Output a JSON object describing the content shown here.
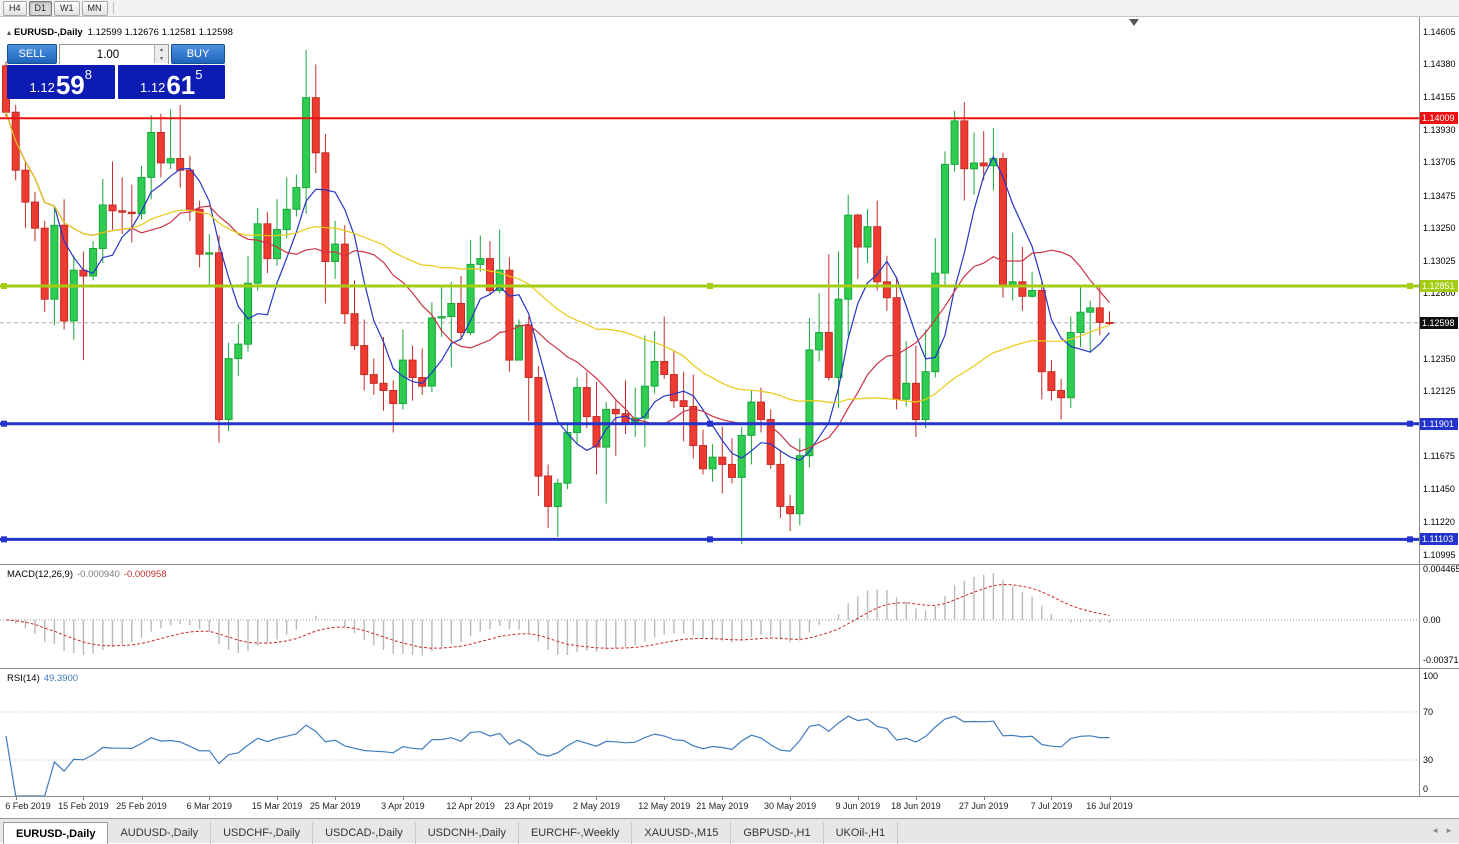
{
  "toolbar": {
    "timeframes": [
      {
        "label": "H4",
        "active": false
      },
      {
        "label": "D1",
        "active": true
      },
      {
        "label": "W1",
        "active": false
      },
      {
        "label": "MN",
        "active": false
      }
    ]
  },
  "chart_header": {
    "collapse_icon": "▴",
    "symbol_title": "EURUSD-,Daily",
    "ohlc": "1.12599 1.12676 1.12581 1.12598"
  },
  "one_click": {
    "sell_label": "SELL",
    "buy_label": "BUY",
    "volume": "1.00",
    "spinner_up_icon": "▲",
    "spinner_down_icon": "▼",
    "sell_price": {
      "prefix": "1.12",
      "big": "59",
      "sup": "8"
    },
    "buy_price": {
      "prefix": "1.12",
      "big": "61",
      "sup": "5"
    }
  },
  "price_axis_ticks": [
    "1.14605",
    "1.14380",
    "1.14155",
    "1.13930",
    "1.13705",
    "1.13475",
    "1.13250",
    "1.13025",
    "1.12800",
    "1.12575",
    "1.12350",
    "1.12125",
    "1.11900",
    "1.11675",
    "1.11450",
    "1.11220",
    "1.10995"
  ],
  "indicators": {
    "macd": {
      "name": "MACD(12,26,9)",
      "value_main": "-0.000940",
      "value_signal": "-0.000958",
      "axis": [
        "0.004465",
        "0.00",
        "-0.003715"
      ]
    },
    "rsi": {
      "name": "RSI(14)",
      "value": "49.3900",
      "axis": [
        "100",
        "70",
        "30",
        "0"
      ]
    }
  },
  "date_axis": {
    "labels": [
      "6 Feb 2019",
      "15 Feb 2019",
      "25 Feb 2019",
      "6 Mar 2019",
      "15 Mar 2019",
      "25 Mar 2019",
      "3 Apr 2019",
      "12 Apr 2019",
      "23 Apr 2019",
      "2 May 2019",
      "12 May 2019",
      "21 May 2019",
      "30 May 2019",
      "9 Jun 2019",
      "18 Jun 2019",
      "27 Jun 2019",
      "7 Jul 2019",
      "16 Jul 2019"
    ],
    "tick_indices": [
      1,
      8,
      14,
      21,
      28,
      34,
      41,
      48,
      54,
      61,
      68,
      74,
      81,
      88,
      94,
      101,
      108,
      114
    ]
  },
  "tabs": [
    {
      "label": "EURUSD-,Daily",
      "active": true
    },
    {
      "label": "AUDUSD-,Daily",
      "active": false
    },
    {
      "label": "USDCHF-,Daily",
      "active": false
    },
    {
      "label": "USDCAD-,Daily",
      "active": false
    },
    {
      "label": "USDCNH-,Daily",
      "active": false
    },
    {
      "label": "EURCHF-,Weekly",
      "active": false
    },
    {
      "label": "XAUUSD-,M15",
      "active": false
    },
    {
      "label": "GBPUSD-,H1",
      "active": false
    },
    {
      "label": "UKOil-,H1",
      "active": false
    }
  ],
  "tab_scroll": {
    "left_icon": "◄",
    "right_icon": "►"
  },
  "colors": {
    "bull": "#2ecc51",
    "bull_stroke": "#17a83a",
    "bear": "#ee3b32",
    "bear_stroke": "#c52b24",
    "ma_fast": "#2436c4",
    "ma_mid": "#cc3344",
    "ma_slow": "#e8cb14",
    "macd_hist": "#b9b9b9",
    "macd_signal": "#cc2a2a",
    "rsi_line": "#3f7cc0",
    "buy_sell_button": "#2273cd",
    "price_panel_bg": "#0c1bb2"
  },
  "chart_data": {
    "type": "candlestick",
    "symbol": "EURUSD-",
    "timeframe": "Daily",
    "main_axis": {
      "max": 1.14707,
      "min": 1.10933
    },
    "hlines": [
      {
        "price": 1.14009,
        "label": "1.14009",
        "color": "#ee1010",
        "width": 2,
        "handles": false
      },
      {
        "price": 1.12851,
        "label": "1.12851",
        "color": "#a3cc12",
        "width": 3,
        "handles": true
      },
      {
        "price": 1.11901,
        "label": "1.11901",
        "color": "#2433cc",
        "width": 3,
        "handles": true
      },
      {
        "price": 1.11103,
        "label": "1.11103",
        "color": "#2433cc",
        "width": 3,
        "handles": true
      }
    ],
    "bid_line": {
      "price": 1.12598,
      "label": "1.12598",
      "label_bg": "#101010",
      "line_color": "#b0b0b0"
    },
    "moving_averages": [
      {
        "period": 6,
        "color": "#2436c4"
      },
      {
        "period": 14,
        "color": "#cc3344"
      },
      {
        "period": 40,
        "color": "#e8cb14"
      }
    ],
    "macd": {
      "fast": 12,
      "slow": 26,
      "signal": 9,
      "scale": {
        "max": 0.0048,
        "min": -0.0042
      }
    },
    "rsi": {
      "period": 14,
      "levels": [
        70,
        30
      ],
      "scale": {
        "max": 100,
        "min": 0
      }
    },
    "candles": [
      [
        1.1437,
        1.144,
        1.1402,
        1.1405
      ],
      [
        1.1405,
        1.141,
        1.1358,
        1.1365
      ],
      [
        1.1365,
        1.1371,
        1.1325,
        1.1343
      ],
      [
        1.1343,
        1.135,
        1.1316,
        1.1325
      ],
      [
        1.1325,
        1.133,
        1.1267,
        1.1276
      ],
      [
        1.1276,
        1.134,
        1.1258,
        1.1327
      ],
      [
        1.1327,
        1.1345,
        1.1255,
        1.1261
      ],
      [
        1.1261,
        1.1306,
        1.1248,
        1.1296
      ],
      [
        1.1296,
        1.1309,
        1.1234,
        1.1292
      ],
      [
        1.1292,
        1.1316,
        1.1289,
        1.1311
      ],
      [
        1.1311,
        1.1359,
        1.1301,
        1.1341
      ],
      [
        1.1341,
        1.1371,
        1.1324,
        1.1337
      ],
      [
        1.1337,
        1.136,
        1.1321,
        1.1336
      ],
      [
        1.1336,
        1.1355,
        1.1315,
        1.1335
      ],
      [
        1.1335,
        1.1368,
        1.1331,
        1.136
      ],
      [
        1.136,
        1.1403,
        1.1345,
        1.1391
      ],
      [
        1.1391,
        1.1404,
        1.136,
        1.137
      ],
      [
        1.137,
        1.1407,
        1.1366,
        1.1373
      ],
      [
        1.1373,
        1.141,
        1.1353,
        1.1365
      ],
      [
        1.1365,
        1.1375,
        1.133,
        1.1338
      ],
      [
        1.1338,
        1.1344,
        1.1298,
        1.1307
      ],
      [
        1.1307,
        1.1321,
        1.1285,
        1.1308
      ],
      [
        1.1308,
        1.132,
        1.1177,
        1.1193
      ],
      [
        1.1193,
        1.1246,
        1.1185,
        1.1235
      ],
      [
        1.1235,
        1.1259,
        1.1223,
        1.1245
      ],
      [
        1.1245,
        1.1306,
        1.124,
        1.1287
      ],
      [
        1.1287,
        1.1339,
        1.1282,
        1.1328
      ],
      [
        1.1328,
        1.1336,
        1.1294,
        1.1304
      ],
      [
        1.1304,
        1.1345,
        1.1299,
        1.1324
      ],
      [
        1.1324,
        1.136,
        1.1318,
        1.1338
      ],
      [
        1.1338,
        1.1362,
        1.1333,
        1.1353
      ],
      [
        1.1353,
        1.1448,
        1.1335,
        1.1415
      ],
      [
        1.1415,
        1.1438,
        1.1363,
        1.1377
      ],
      [
        1.1377,
        1.139,
        1.1273,
        1.1302
      ],
      [
        1.1302,
        1.133,
        1.129,
        1.1314
      ],
      [
        1.1314,
        1.1327,
        1.1259,
        1.1266
      ],
      [
        1.1266,
        1.1289,
        1.1241,
        1.1244
      ],
      [
        1.1244,
        1.1262,
        1.1213,
        1.1224
      ],
      [
        1.1224,
        1.1235,
        1.121,
        1.1218
      ],
      [
        1.1218,
        1.125,
        1.1199,
        1.1213
      ],
      [
        1.1213,
        1.122,
        1.1184,
        1.1204
      ],
      [
        1.1204,
        1.1255,
        1.12,
        1.1234
      ],
      [
        1.1234,
        1.1244,
        1.1206,
        1.1222
      ],
      [
        1.1222,
        1.1242,
        1.121,
        1.1216
      ],
      [
        1.1216,
        1.1274,
        1.1212,
        1.1263
      ],
      [
        1.1263,
        1.1285,
        1.125,
        1.1264
      ],
      [
        1.1264,
        1.1288,
        1.1229,
        1.1273
      ],
      [
        1.1273,
        1.1292,
        1.1248,
        1.1253
      ],
      [
        1.1253,
        1.1317,
        1.1251,
        1.13
      ],
      [
        1.13,
        1.132,
        1.1295,
        1.1304
      ],
      [
        1.1304,
        1.1316,
        1.1279,
        1.1282
      ],
      [
        1.1282,
        1.1324,
        1.128,
        1.1296
      ],
      [
        1.1296,
        1.1305,
        1.1226,
        1.1234
      ],
      [
        1.1234,
        1.1262,
        1.1234,
        1.1258
      ],
      [
        1.1258,
        1.1264,
        1.1192,
        1.1222
      ],
      [
        1.1222,
        1.123,
        1.114,
        1.1154
      ],
      [
        1.1154,
        1.1162,
        1.1118,
        1.1133
      ],
      [
        1.1133,
        1.1152,
        1.1112,
        1.1149
      ],
      [
        1.1149,
        1.119,
        1.1145,
        1.1184
      ],
      [
        1.1184,
        1.1222,
        1.1176,
        1.1215
      ],
      [
        1.1215,
        1.1226,
        1.1187,
        1.1195
      ],
      [
        1.1195,
        1.1219,
        1.1155,
        1.1174
      ],
      [
        1.1174,
        1.1205,
        1.1135,
        1.12
      ],
      [
        1.12,
        1.1206,
        1.1168,
        1.1197
      ],
      [
        1.1197,
        1.122,
        1.1183,
        1.1191
      ],
      [
        1.1191,
        1.1215,
        1.1181,
        1.1194
      ],
      [
        1.1194,
        1.1251,
        1.1174,
        1.1216
      ],
      [
        1.1216,
        1.1254,
        1.1211,
        1.1233
      ],
      [
        1.1233,
        1.1264,
        1.1221,
        1.1224
      ],
      [
        1.1224,
        1.124,
        1.1201,
        1.1206
      ],
      [
        1.1206,
        1.1226,
        1.1178,
        1.1202
      ],
      [
        1.1202,
        1.1224,
        1.1166,
        1.1175
      ],
      [
        1.1175,
        1.1186,
        1.1155,
        1.1159
      ],
      [
        1.1159,
        1.1176,
        1.115,
        1.1167
      ],
      [
        1.1167,
        1.1188,
        1.1142,
        1.1162
      ],
      [
        1.1162,
        1.118,
        1.1149,
        1.1153
      ],
      [
        1.1153,
        1.1188,
        1.1107,
        1.1182
      ],
      [
        1.1182,
        1.1213,
        1.1162,
        1.1205
      ],
      [
        1.1205,
        1.1215,
        1.1184,
        1.1193
      ],
      [
        1.1193,
        1.12,
        1.1159,
        1.1162
      ],
      [
        1.1162,
        1.1172,
        1.1125,
        1.1133
      ],
      [
        1.1133,
        1.1141,
        1.1116,
        1.1128
      ],
      [
        1.1128,
        1.118,
        1.112,
        1.1168
      ],
      [
        1.1168,
        1.1263,
        1.116,
        1.1241
      ],
      [
        1.1241,
        1.128,
        1.1233,
        1.1253
      ],
      [
        1.1253,
        1.1307,
        1.122,
        1.1222
      ],
      [
        1.1222,
        1.1309,
        1.1201,
        1.1276
      ],
      [
        1.1276,
        1.1348,
        1.1251,
        1.1334
      ],
      [
        1.1334,
        1.1335,
        1.129,
        1.1312
      ],
      [
        1.1312,
        1.1338,
        1.1301,
        1.1326
      ],
      [
        1.1326,
        1.1344,
        1.1282,
        1.1288
      ],
      [
        1.1288,
        1.1306,
        1.1268,
        1.1277
      ],
      [
        1.1277,
        1.1291,
        1.12,
        1.1207
      ],
      [
        1.1207,
        1.1247,
        1.1202,
        1.1218
      ],
      [
        1.1218,
        1.1244,
        1.1181,
        1.1193
      ],
      [
        1.1193,
        1.1255,
        1.1187,
        1.1226
      ],
      [
        1.1226,
        1.1318,
        1.1222,
        1.1294
      ],
      [
        1.1294,
        1.1378,
        1.1285,
        1.1369
      ],
      [
        1.1369,
        1.1406,
        1.1364,
        1.1399
      ],
      [
        1.1399,
        1.1412,
        1.1344,
        1.1366
      ],
      [
        1.1366,
        1.1391,
        1.1348,
        1.137
      ],
      [
        1.137,
        1.1392,
        1.1358,
        1.1368
      ],
      [
        1.1368,
        1.1394,
        1.1351,
        1.1373
      ],
      [
        1.1373,
        1.1377,
        1.1277,
        1.1285
      ],
      [
        1.1285,
        1.1322,
        1.1275,
        1.1288
      ],
      [
        1.1288,
        1.1312,
        1.1268,
        1.1278
      ],
      [
        1.1278,
        1.1295,
        1.1277,
        1.1282
      ],
      [
        1.1282,
        1.1288,
        1.1207,
        1.1226
      ],
      [
        1.1226,
        1.1234,
        1.1206,
        1.1213
      ],
      [
        1.1213,
        1.1221,
        1.1193,
        1.1208
      ],
      [
        1.1208,
        1.1264,
        1.1201,
        1.1253
      ],
      [
        1.1253,
        1.1286,
        1.1243,
        1.1267
      ],
      [
        1.1267,
        1.1275,
        1.1239,
        1.127
      ],
      [
        1.127,
        1.1285,
        1.1251,
        1.126
      ],
      [
        1.12599,
        1.12676,
        1.12581,
        1.12598
      ]
    ]
  }
}
